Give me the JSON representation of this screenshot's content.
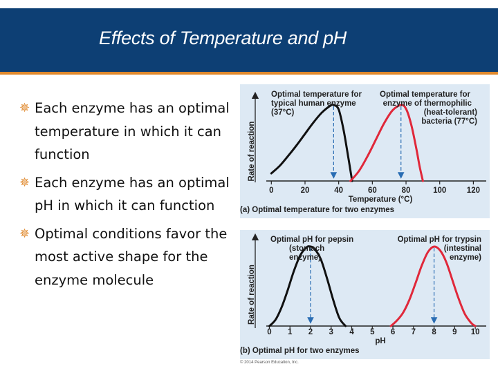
{
  "slide": {
    "title": "Effects of Temperature and pH",
    "bullets": [
      "Each enzyme has an optimal temperature in which it can function",
      "Each enzyme has an optimal pH in which it can function",
      "Optimal conditions favor the most active shape for the enzyme molecule"
    ],
    "bullet_marker": "✵",
    "copyright": "© 2014 Pearson Education, Inc.",
    "colors": {
      "banner": "#0d3f74",
      "accent": "#e0892d",
      "panel": "#dde9f4",
      "human": "#111111",
      "thermophile": "#e0283a",
      "arrow": "#2a6db3"
    }
  },
  "chart_data": [
    {
      "type": "line",
      "caption": "(a) Optimal temperature for two enzymes",
      "xlabel": "Temperature (°C)",
      "ylabel": "Rate of reaction",
      "xlim": [
        -3,
        126
      ],
      "xticks": [
        0,
        20,
        40,
        60,
        80,
        100,
        120
      ],
      "ylim": [
        0,
        1
      ],
      "series": [
        {
          "color": "#111111",
          "optimum": 37,
          "x": [
            0,
            5,
            10,
            15,
            20,
            25,
            30,
            35,
            37,
            40,
            43,
            46,
            48
          ],
          "y": [
            0.1,
            0.2,
            0.33,
            0.47,
            0.62,
            0.77,
            0.9,
            0.99,
            1.0,
            0.94,
            0.66,
            0.27,
            0.0
          ]
        },
        {
          "color": "#e0283a",
          "optimum": 77,
          "x": [
            47,
            52,
            57,
            62,
            67,
            72,
            77,
            80,
            83,
            86,
            88,
            90
          ],
          "y": [
            0.0,
            0.13,
            0.32,
            0.54,
            0.76,
            0.93,
            1.0,
            0.95,
            0.75,
            0.44,
            0.2,
            0.0
          ]
        }
      ],
      "annotations": [
        {
          "text": [
            "Optimal temperature for",
            "typical human enzyme",
            "(37°C)"
          ],
          "align": "left"
        },
        {
          "text": [
            "Optimal temperature for",
            "enzyme of thermophilic",
            "(heat-tolerant)",
            "bacteria (77°C)"
          ],
          "align": "right"
        }
      ]
    },
    {
      "type": "line",
      "caption": "(b) Optimal pH for two enzymes",
      "xlabel": "pH",
      "ylabel": "Rate of reaction",
      "xlim": [
        -0.15,
        10.4
      ],
      "xticks": [
        0,
        1,
        2,
        3,
        4,
        5,
        6,
        7,
        8,
        9,
        10
      ],
      "ylim": [
        0,
        1
      ],
      "series": [
        {
          "color": "#111111",
          "optimum": 2,
          "x": [
            0,
            0.3,
            0.6,
            0.9,
            1.2,
            1.5,
            1.8,
            2.0,
            2.2,
            2.5,
            2.8,
            3.1,
            3.4,
            3.7
          ],
          "y": [
            0.0,
            0.08,
            0.24,
            0.46,
            0.7,
            0.89,
            0.99,
            1.0,
            0.97,
            0.84,
            0.6,
            0.33,
            0.1,
            0.0
          ]
        },
        {
          "color": "#e0283a",
          "optimum": 8,
          "x": [
            5.9,
            6.2,
            6.5,
            6.8,
            7.1,
            7.4,
            7.7,
            8.0,
            8.3,
            8.6,
            8.9,
            9.2,
            9.5,
            9.8,
            10.0
          ],
          "y": [
            0.0,
            0.07,
            0.17,
            0.33,
            0.54,
            0.76,
            0.93,
            1.0,
            0.95,
            0.8,
            0.57,
            0.34,
            0.15,
            0.04,
            0.0
          ]
        }
      ],
      "annotations": [
        {
          "text": [
            "Optimal pH for pepsin",
            "(stomach",
            "enzyme)"
          ],
          "align": "left"
        },
        {
          "text": [
            "Optimal pH for trypsin",
            "(intestinal",
            "enzyme)"
          ],
          "align": "right"
        }
      ]
    }
  ]
}
